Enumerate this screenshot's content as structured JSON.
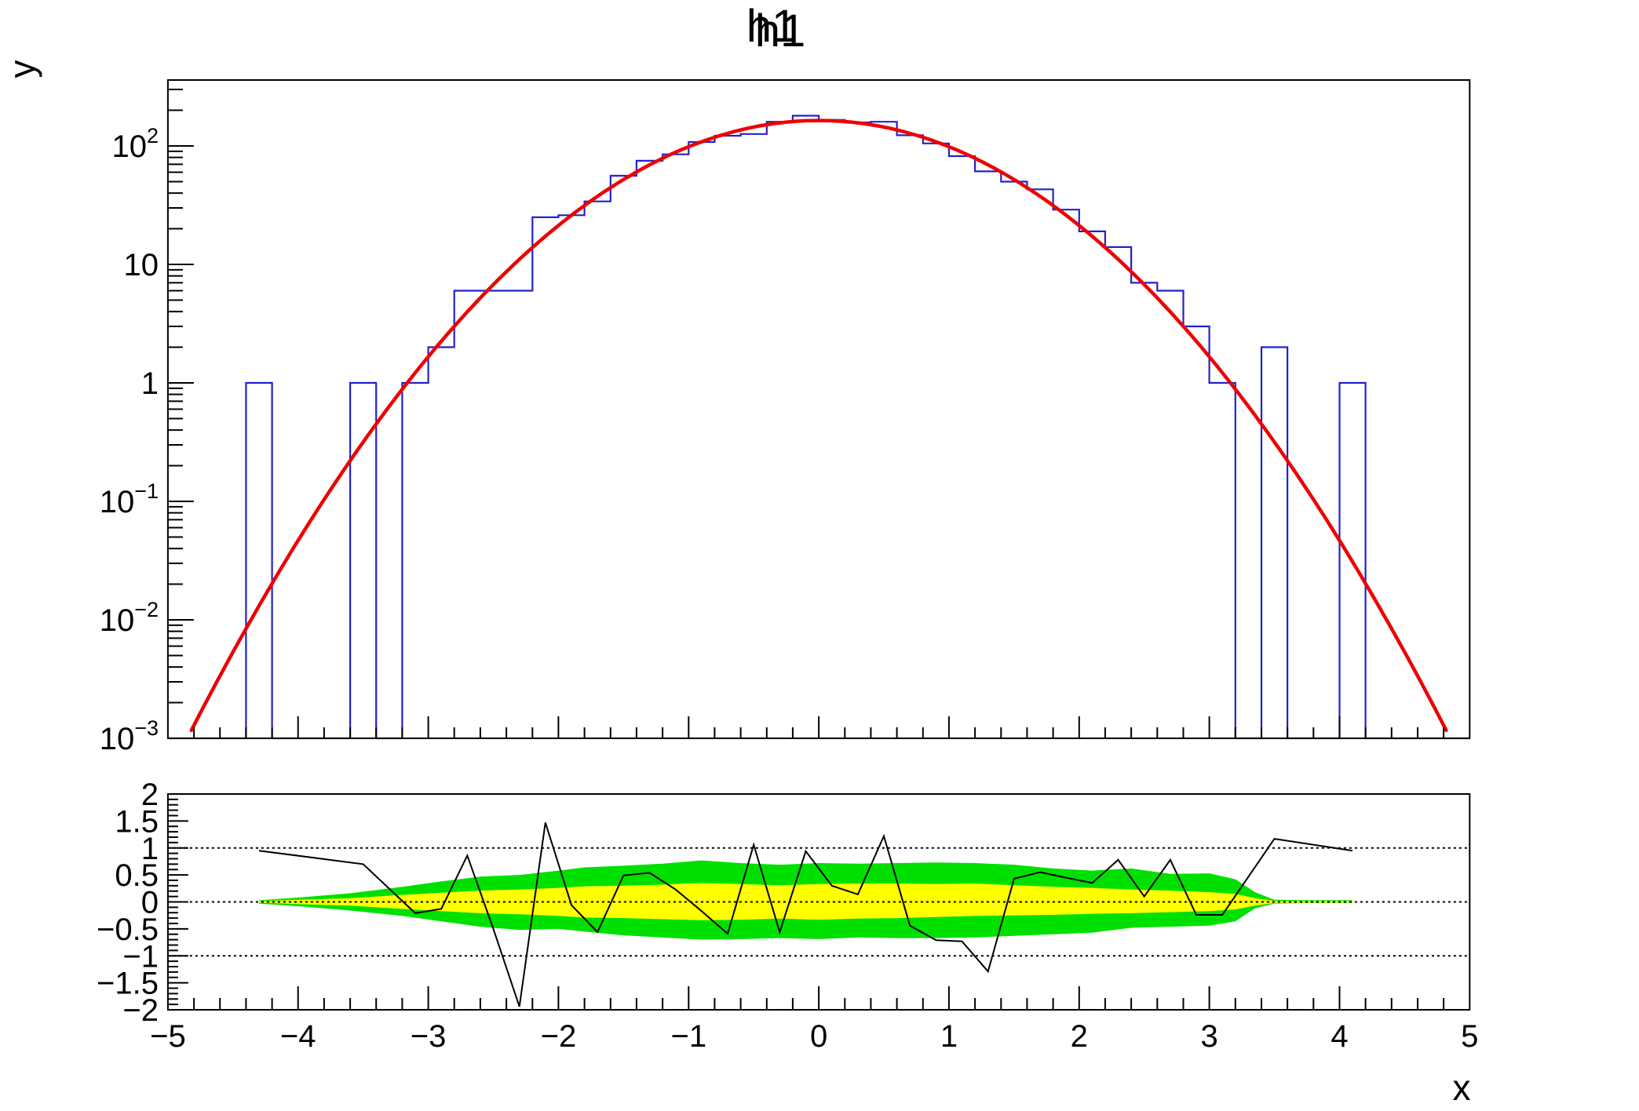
{
  "title": "h1",
  "colors": {
    "histogram": "#2222cc",
    "fit": "#ee0000",
    "band_1sigma": "#ffff00",
    "band_2sigma": "#00e000",
    "pull_line": "#000000",
    "frame": "#000000",
    "background": "#ffffff"
  },
  "axes": {
    "x": {
      "label": "x",
      "min": -5,
      "max": 5,
      "major_values": [
        -5,
        -4,
        -3,
        -2,
        -1,
        0,
        1,
        2,
        3,
        4,
        5
      ],
      "major_tick_labels": [
        "−5",
        "−4",
        "−3",
        "−2",
        "−1",
        "0",
        "1",
        "2",
        "3",
        "4",
        "5"
      ],
      "minor_step": 0.2
    },
    "y_main": {
      "label": "y",
      "scale": "log",
      "min": 0.001,
      "max": 360,
      "tick_labels": [
        {
          "mantissa": "10",
          "exp": "2",
          "value": 100
        },
        {
          "mantissa": "10",
          "exp": "",
          "value": 10
        },
        {
          "mantissa": "1",
          "exp": "",
          "value": 1
        },
        {
          "mantissa": "10",
          "exp": "−1",
          "value": 0.1
        },
        {
          "mantissa": "10",
          "exp": "−2",
          "value": 0.01
        },
        {
          "mantissa": "10",
          "exp": "−3",
          "value": 0.001
        }
      ]
    },
    "y_ratio": {
      "min": -2,
      "max": 2,
      "major_step": 0.5,
      "minor_step": 0.1,
      "tick_labels": [
        "2",
        "1.5",
        "1",
        "0.5",
        "0",
        "−0.5",
        "−1",
        "−1.5",
        "−2"
      ],
      "tick_values": [
        2,
        1.5,
        1,
        0.5,
        0,
        -0.5,
        -1,
        -1.5,
        -2
      ],
      "gridlines": [
        1,
        0,
        -1
      ]
    }
  },
  "chart_data": [
    {
      "id": "histogram",
      "type": "bar",
      "name": "h1",
      "x_min": -5,
      "x_max": 5,
      "bins": 50,
      "bin_width": 0.2,
      "bin_contents": [
        0,
        0,
        0,
        1,
        0,
        0,
        0,
        1,
        0,
        1,
        2,
        6,
        6,
        6,
        25,
        26,
        34,
        56,
        75,
        85,
        108,
        122,
        126,
        160,
        180,
        166,
        158,
        160,
        123,
        105,
        82,
        61,
        50,
        43,
        29,
        19,
        14,
        7,
        6,
        3,
        1,
        0,
        2,
        0,
        0,
        1,
        0,
        0,
        0,
        0
      ]
    },
    {
      "id": "gaussian-fit",
      "type": "line",
      "function": "gaus",
      "amplitude": 164,
      "mean": 0,
      "sigma": 0.99,
      "draw_range": [
        -4.86,
        4.86
      ],
      "clip_min": 0.001
    },
    {
      "id": "pull-graph",
      "type": "line",
      "x": [
        -4.3,
        -3.5,
        -3.1,
        -2.9,
        -2.7,
        -2.5,
        -2.3,
        -2.1,
        -1.9,
        -1.7,
        -1.5,
        -1.3,
        -1.1,
        -0.9,
        -0.7,
        -0.5,
        -0.3,
        -0.1,
        0.1,
        0.3,
        0.5,
        0.7,
        0.9,
        1.1,
        1.3,
        1.5,
        1.7,
        1.9,
        2.1,
        2.3,
        2.5,
        2.7,
        2.9,
        3.1,
        3.5,
        4.1
      ],
      "y": [
        0.95,
        0.7,
        -0.21,
        -0.13,
        0.86,
        -0.5,
        -1.94,
        1.47,
        -0.06,
        -0.56,
        0.49,
        0.54,
        0.23,
        -0.17,
        -0.59,
        1.06,
        -0.56,
        0.94,
        0.3,
        0.14,
        1.22,
        -0.44,
        -0.71,
        -0.73,
        -1.29,
        0.43,
        0.55,
        0.45,
        0.35,
        0.78,
        0.1,
        0.78,
        -0.24,
        -0.24,
        1.17,
        0.95
      ]
    },
    {
      "id": "confidence-bands",
      "type": "area",
      "x": [
        -4.3,
        -4.0,
        -3.6,
        -3.2,
        -2.9,
        -2.6,
        -2.3,
        -2.0,
        -1.8,
        -1.5,
        -1.2,
        -0.9,
        -0.6,
        -0.3,
        0.0,
        0.3,
        0.6,
        0.9,
        1.2,
        1.5,
        1.8,
        2.1,
        2.4,
        2.7,
        3.0,
        3.2,
        3.35,
        3.5,
        3.8,
        4.1
      ],
      "green_hi": [
        0.03,
        0.08,
        0.16,
        0.28,
        0.38,
        0.47,
        0.5,
        0.58,
        0.64,
        0.67,
        0.71,
        0.77,
        0.72,
        0.69,
        0.72,
        0.71,
        0.72,
        0.73,
        0.72,
        0.69,
        0.62,
        0.58,
        0.62,
        0.52,
        0.53,
        0.42,
        0.18,
        0.04,
        0.03,
        0.03
      ],
      "green_lo": [
        -0.03,
        -0.08,
        -0.16,
        -0.26,
        -0.36,
        -0.46,
        -0.52,
        -0.5,
        -0.55,
        -0.62,
        -0.66,
        -0.7,
        -0.69,
        -0.67,
        -0.69,
        -0.66,
        -0.67,
        -0.67,
        -0.66,
        -0.63,
        -0.6,
        -0.57,
        -0.48,
        -0.46,
        -0.44,
        -0.36,
        -0.12,
        -0.03,
        -0.02,
        -0.02
      ],
      "yellow_hi": [
        0.015,
        0.04,
        0.07,
        0.13,
        0.17,
        0.21,
        0.23,
        0.26,
        0.29,
        0.3,
        0.32,
        0.35,
        0.33,
        0.31,
        0.33,
        0.34,
        0.34,
        0.33,
        0.34,
        0.31,
        0.28,
        0.26,
        0.23,
        0.21,
        0.18,
        0.15,
        0.07,
        0.02,
        0.015,
        0.015
      ],
      "yellow_lo": [
        -0.015,
        -0.04,
        -0.07,
        -0.13,
        -0.17,
        -0.21,
        -0.23,
        -0.26,
        -0.29,
        -0.3,
        -0.32,
        -0.34,
        -0.33,
        -0.31,
        -0.33,
        -0.31,
        -0.3,
        -0.28,
        -0.26,
        -0.25,
        -0.24,
        -0.22,
        -0.21,
        -0.19,
        -0.17,
        -0.14,
        -0.07,
        -0.02,
        -0.015,
        -0.015
      ]
    }
  ]
}
